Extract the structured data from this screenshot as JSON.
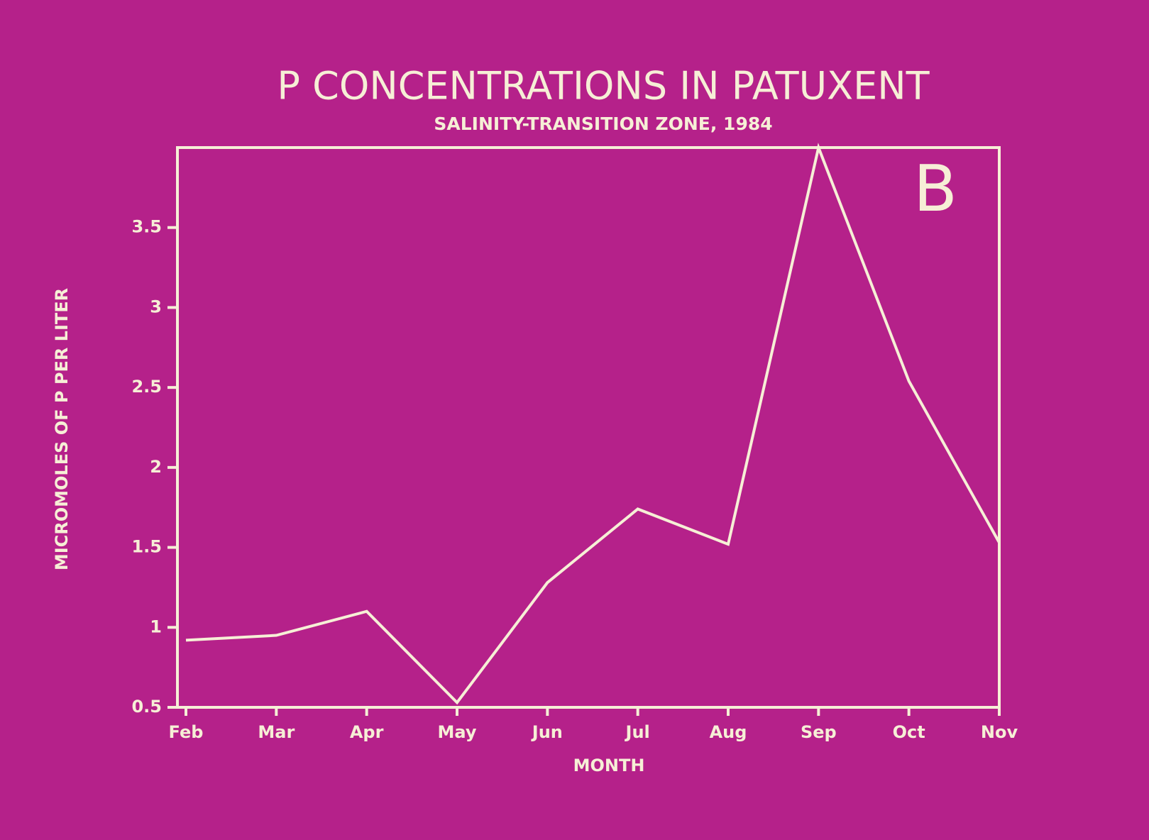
{
  "chart_data": {
    "type": "area",
    "title": "P CONCENTRATIONS IN PATUXENT",
    "subtitle": "SALINITY-TRANSITION ZONE, 1984",
    "annotation": "B",
    "xlabel": "MONTH",
    "ylabel": "MICROMOLES OF P PER LITER",
    "categories": [
      "Feb",
      "Mar",
      "Apr",
      "May",
      "Jun",
      "Jul",
      "Aug",
      "Sep",
      "Oct",
      "Nov"
    ],
    "values": [
      0.92,
      0.95,
      1.1,
      0.53,
      1.28,
      1.74,
      1.52,
      4.0,
      2.54,
      1.53
    ],
    "color": "#f6efd6",
    "background": "#b5218a",
    "ylim": [
      0.5,
      4
    ],
    "yticks": [
      0.5,
      1,
      1.5,
      2,
      2.5,
      3,
      3.5
    ],
    "grid": false
  }
}
